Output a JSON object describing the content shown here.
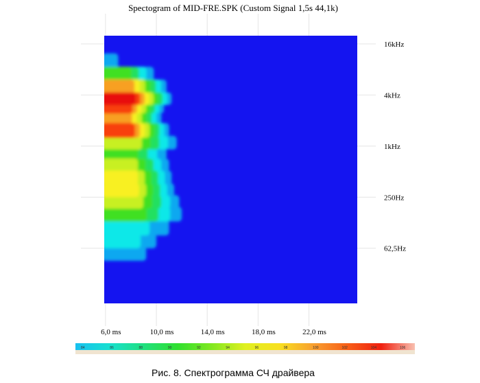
{
  "caption": "Рис. 8. Спектрограмма СЧ драйвера",
  "colors": {
    "background": "#1414f0",
    "spectrum": [
      "#1414f0",
      "#10a8f0",
      "#10e8e8",
      "#20e060",
      "#40e020",
      "#c8f020",
      "#f8f020",
      "#f8a020",
      "#f84010",
      "#e81010"
    ]
  },
  "chart_data": {
    "type": "heatmap",
    "title": "Spectogram of MID-FRE.SPK (Custom Signal 1,5s 44,1k)",
    "xlabel": "",
    "ylabel": "",
    "x_unit": "ms",
    "y_unit": "Hz",
    "x_ticks": [
      {
        "value": 6,
        "label": "6,0 ms"
      },
      {
        "value": 10,
        "label": "10,0 ms"
      },
      {
        "value": 14,
        "label": "14,0 ms"
      },
      {
        "value": 18,
        "label": "18,0 ms"
      },
      {
        "value": 22,
        "label": "22,0 ms"
      }
    ],
    "y_ticks": [
      {
        "value": 16000,
        "label": "16kHz"
      },
      {
        "value": 4000,
        "label": "4kHz"
      },
      {
        "value": 1000,
        "label": "1kHz"
      },
      {
        "value": 250,
        "label": "250Hz"
      },
      {
        "value": 62.5,
        "label": "62,5Hz"
      }
    ],
    "xlim": [
      5.9,
      25.8
    ],
    "ylim": [
      14,
      20000
    ],
    "y_scale": "log",
    "colorbar": {
      "ticks": [
        "84",
        "86",
        "88",
        "90",
        "92",
        "94",
        "96",
        "98",
        "100",
        "102",
        "104",
        "106"
      ]
    },
    "bands": [
      {
        "freq_hz": 10000,
        "level": 1,
        "end_ms": 7.0
      },
      {
        "freq_hz": 7000,
        "level": 4,
        "end_ms": 9.8
      },
      {
        "freq_hz": 5000,
        "level": 7,
        "end_ms": 10.8
      },
      {
        "freq_hz": 3500,
        "level": 9,
        "end_ms": 11.2
      },
      {
        "freq_hz": 2800,
        "level": 8,
        "end_ms": 10.6
      },
      {
        "freq_hz": 2200,
        "level": 7,
        "end_ms": 10.4
      },
      {
        "freq_hz": 1500,
        "level": 8,
        "end_ms": 11.0
      },
      {
        "freq_hz": 1100,
        "level": 5,
        "end_ms": 11.6
      },
      {
        "freq_hz": 800,
        "level": 4,
        "end_ms": 10.8
      },
      {
        "freq_hz": 600,
        "level": 5,
        "end_ms": 11.0
      },
      {
        "freq_hz": 420,
        "level": 6,
        "end_ms": 11.2
      },
      {
        "freq_hz": 300,
        "level": 6,
        "end_ms": 11.4
      },
      {
        "freq_hz": 220,
        "level": 5,
        "end_ms": 11.8
      },
      {
        "freq_hz": 160,
        "level": 4,
        "end_ms": 12.0
      },
      {
        "freq_hz": 110,
        "level": 2,
        "end_ms": 11.0
      },
      {
        "freq_hz": 75,
        "level": 2,
        "end_ms": 10.0
      },
      {
        "freq_hz": 55,
        "level": 1,
        "end_ms": 9.2
      }
    ]
  }
}
